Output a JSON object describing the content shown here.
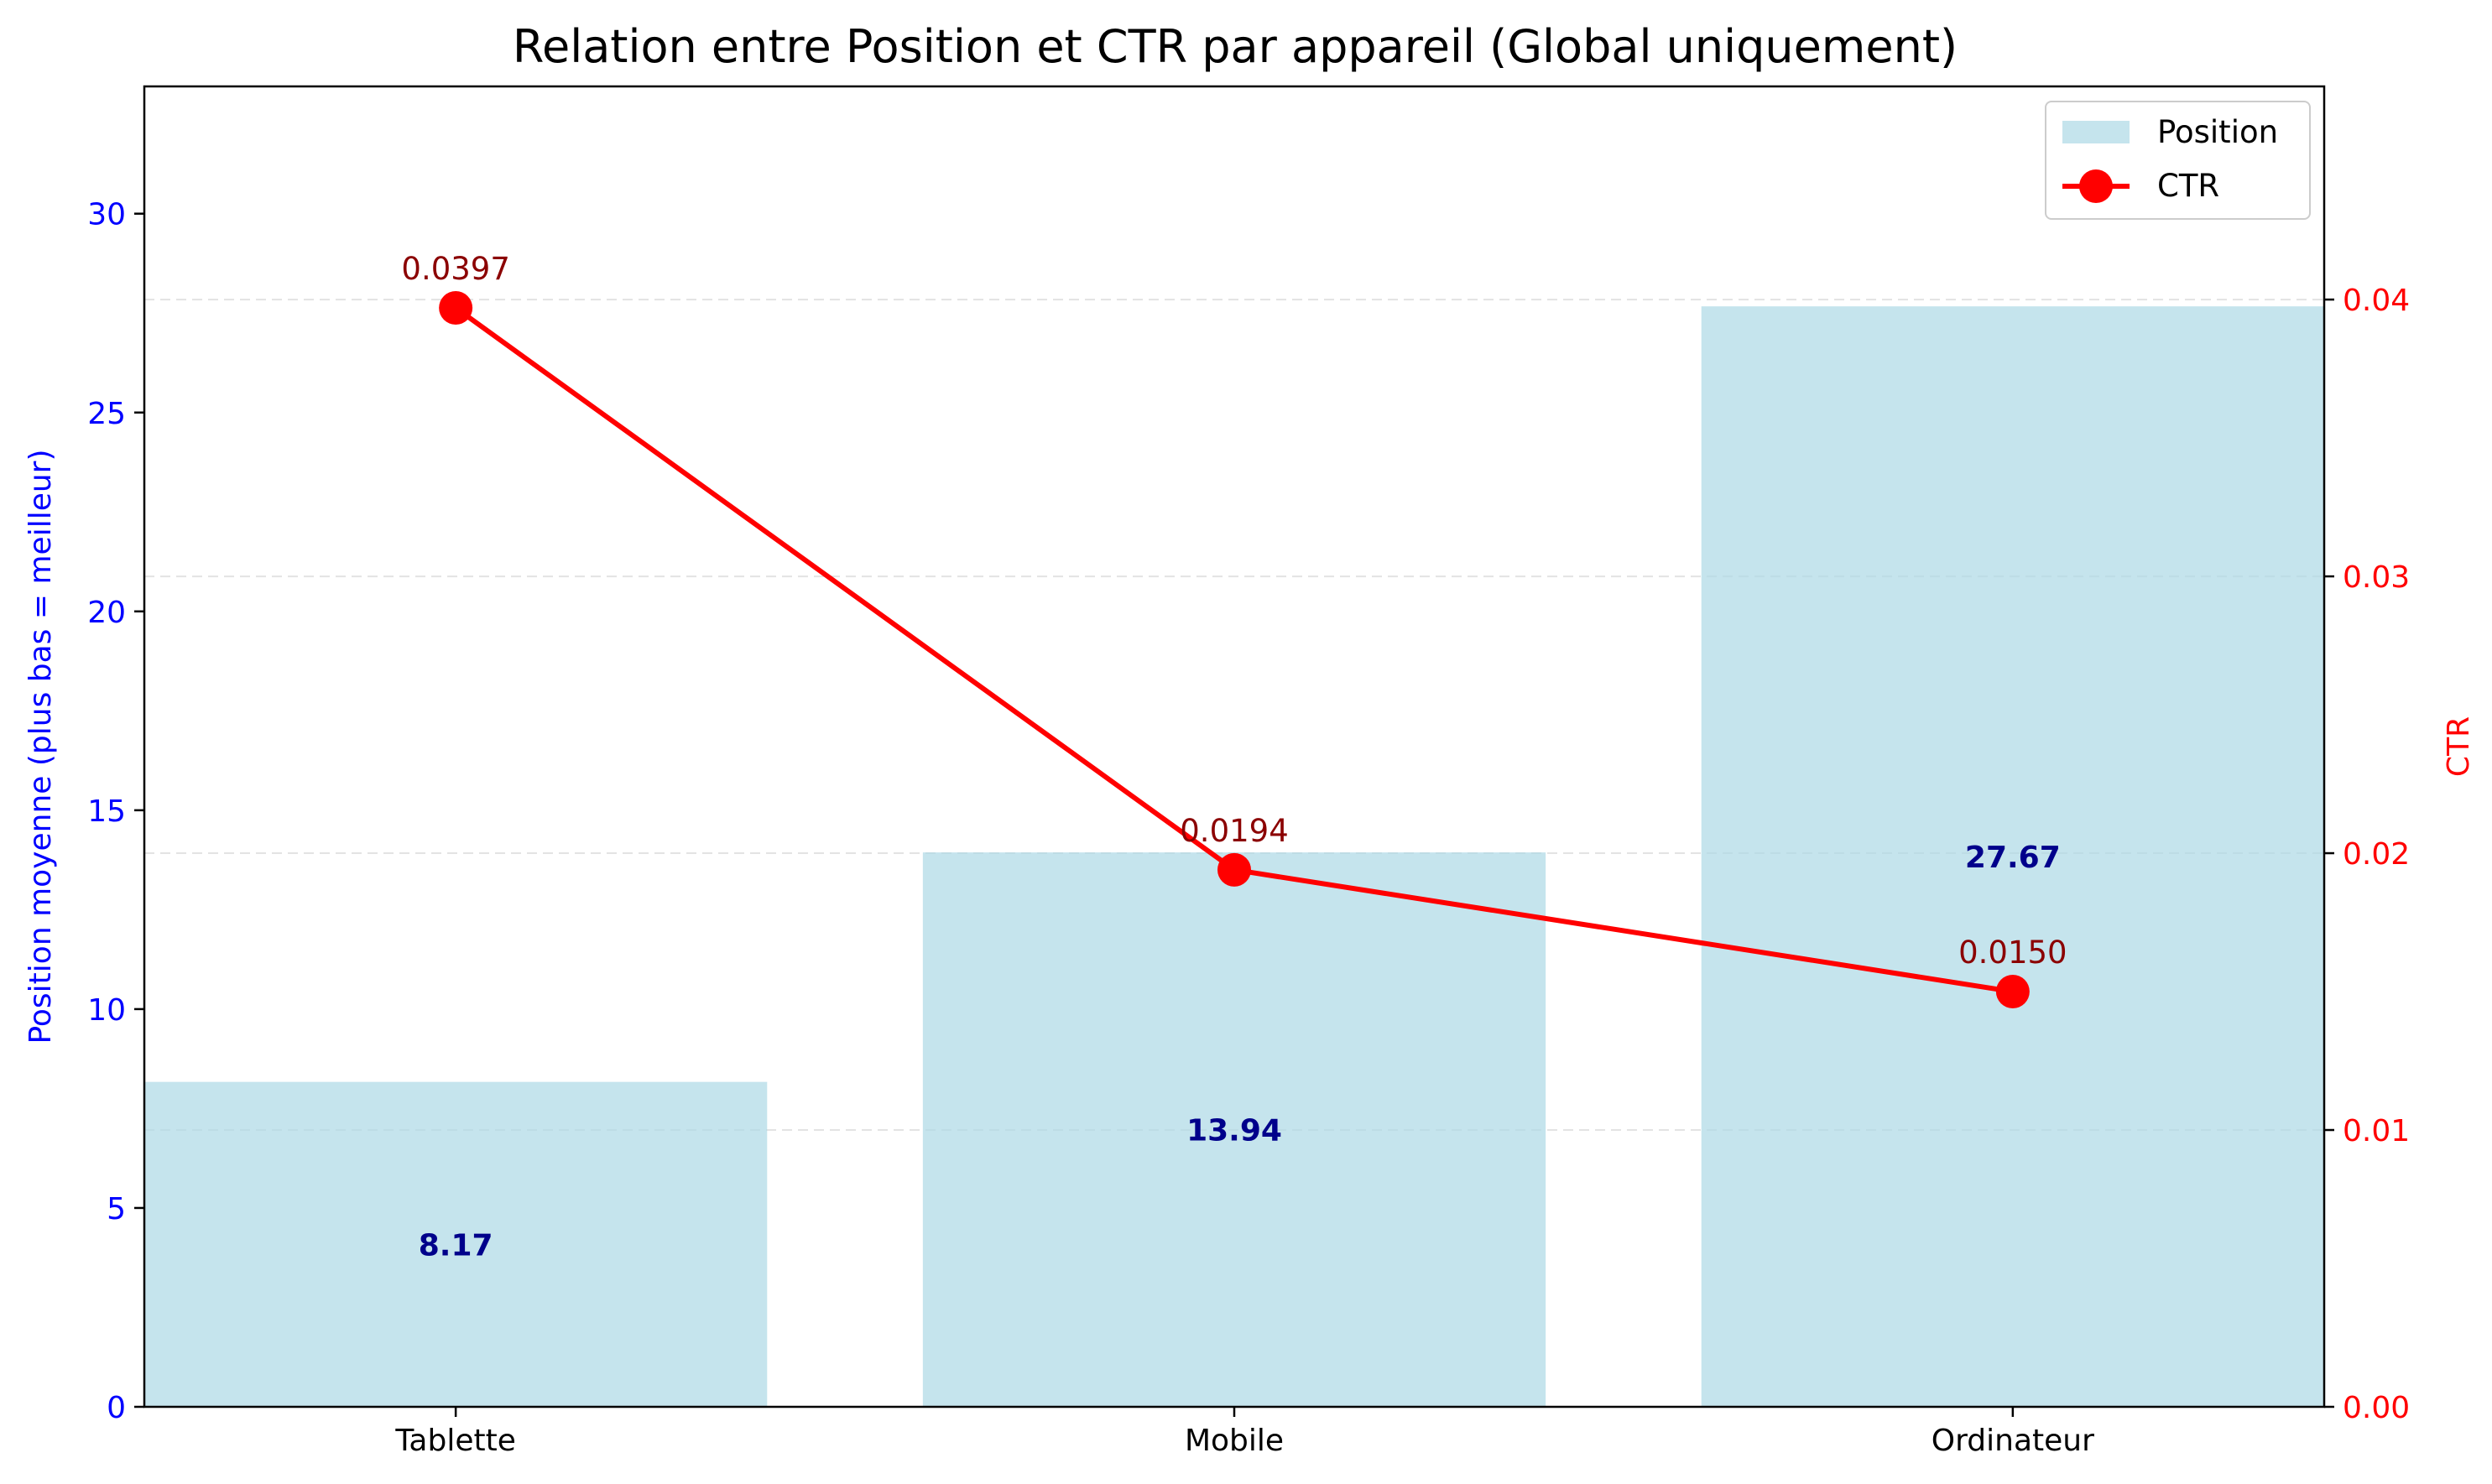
{
  "chart_data": {
    "type": "bar",
    "title": "Relation entre Position et CTR par appareil (Global uniquement)",
    "categories": [
      "Tablette",
      "Mobile",
      "Ordinateur"
    ],
    "series": [
      {
        "name": "Position",
        "type": "bar",
        "axis": "left",
        "color": "#add8e6",
        "values": [
          8.17,
          13.94,
          27.67
        ],
        "labels": [
          "8.17",
          "13.94",
          "27.67"
        ]
      },
      {
        "name": "CTR",
        "type": "line",
        "axis": "right",
        "color": "#ff0000",
        "values": [
          0.0397,
          0.0194,
          0.015
        ],
        "labels": [
          "0.0397",
          "0.0194",
          "0.0150"
        ]
      }
    ],
    "y_left": {
      "label": "Position moyenne (plus bas = meilleur)",
      "ylim": [
        0,
        33.2
      ],
      "ticks": [
        0,
        5,
        10,
        15,
        20,
        25,
        30
      ],
      "tick_labels": [
        "0",
        "5",
        "10",
        "15",
        "20",
        "25",
        "30"
      ],
      "color": "#0000ff"
    },
    "y_right": {
      "label": "CTR",
      "ylim": [
        0,
        0.0477
      ],
      "ticks": [
        0,
        0.01,
        0.02,
        0.03,
        0.04
      ],
      "tick_labels": [
        "0.00",
        "0.01",
        "0.02",
        "0.03",
        "0.04"
      ],
      "color": "#ff0000"
    },
    "grid": "horizontal dashed, right axis",
    "legend": {
      "position": "top-right",
      "entries": [
        "Position",
        "CTR"
      ]
    }
  }
}
